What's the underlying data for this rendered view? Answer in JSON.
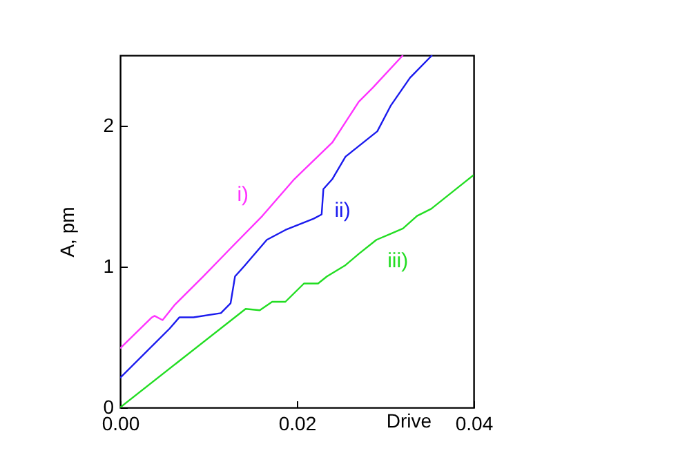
{
  "chart_data": {
    "type": "line",
    "xlabel": "Drive",
    "ylabel": "A, pm",
    "xlim": [
      0,
      0.04
    ],
    "ylim": [
      0,
      2.5
    ],
    "xticks": [
      {
        "value": 0,
        "label": "0.00"
      },
      {
        "value": 0.02,
        "label": "0.02"
      },
      {
        "value": 0.04,
        "label": "0.04"
      }
    ],
    "yticks": [
      0,
      1,
      2
    ],
    "grid": false,
    "legend": false,
    "marker": "none",
    "line_style": "solid",
    "series": [
      {
        "name": "i)",
        "color": "#ff33ff",
        "x": [
          0,
          0.0036,
          0.0039,
          0.0048,
          0.0062,
          0.0094,
          0.0125,
          0.0161,
          0.0197,
          0.024,
          0.027,
          0.0286,
          0.032
        ],
        "values": [
          0.42,
          0.64,
          0.65,
          0.62,
          0.73,
          0.93,
          1.13,
          1.36,
          1.62,
          1.88,
          2.17,
          2.27,
          2.5
        ]
      },
      {
        "name": "ii)",
        "color": "#1a1aee",
        "x": [
          0,
          0.0056,
          0.0067,
          0.0083,
          0.0114,
          0.0125,
          0.013,
          0.014,
          0.0166,
          0.0187,
          0.0219,
          0.0228,
          0.023,
          0.024,
          0.0255,
          0.0267,
          0.0291,
          0.0306,
          0.0328,
          0.0353
        ],
        "values": [
          0.21,
          0.56,
          0.64,
          0.64,
          0.67,
          0.74,
          0.93,
          1.0,
          1.19,
          1.26,
          1.34,
          1.37,
          1.55,
          1.62,
          1.78,
          1.84,
          1.96,
          2.14,
          2.34,
          2.5
        ]
      },
      {
        "name": "iii)",
        "color": "#22dd22",
        "x": [
          0,
          0.0142,
          0.0158,
          0.0172,
          0.0187,
          0.0208,
          0.0224,
          0.0234,
          0.0255,
          0.027,
          0.029,
          0.0305,
          0.032,
          0.0336,
          0.0352,
          0.0364,
          0.0388,
          0.04
        ],
        "values": [
          0,
          0.7,
          0.69,
          0.75,
          0.75,
          0.88,
          0.88,
          0.93,
          1.01,
          1.09,
          1.19,
          1.23,
          1.27,
          1.36,
          1.41,
          1.47,
          1.59,
          1.65
        ]
      }
    ]
  }
}
